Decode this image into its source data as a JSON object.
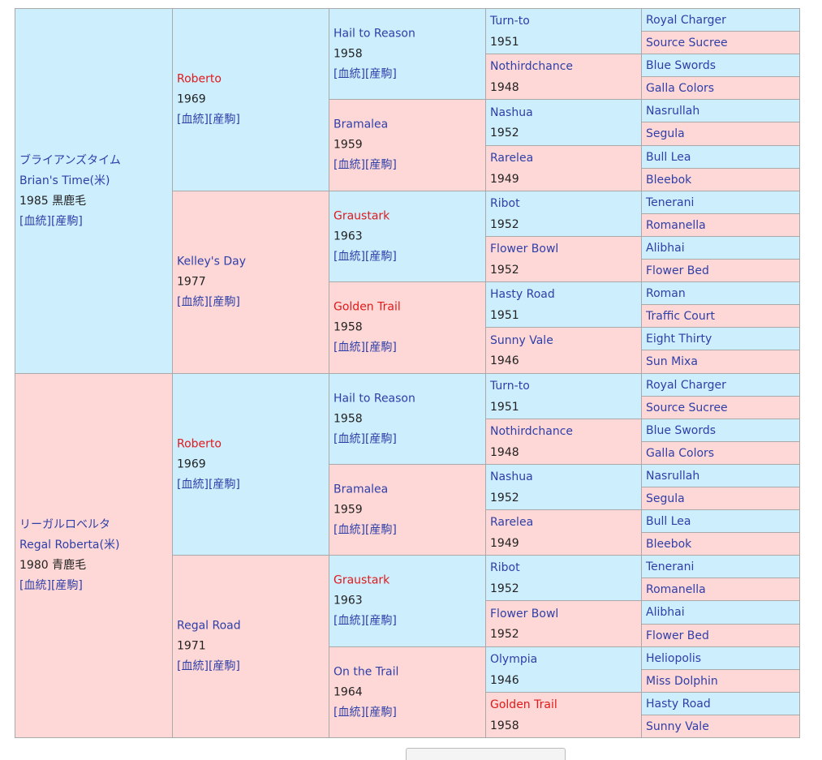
{
  "link_labels": [
    "[血統]",
    "[産駒]"
  ],
  "gen1": [
    {
      "name_ja": "ブライアンズタイム",
      "name_en": "Brian's Time(米)",
      "year": "1985",
      "color": "黒鹿毛",
      "sex": "male"
    },
    {
      "name_ja": "リーガルロベルタ",
      "name_en": "Regal Roberta(米)",
      "year": "1980",
      "color": "青鹿毛",
      "sex": "female"
    }
  ],
  "gen2": [
    {
      "name": "Roberto",
      "year": "1969",
      "red": true,
      "sex": "male"
    },
    {
      "name": "Kelley's Day",
      "year": "1977",
      "red": false,
      "sex": "female"
    },
    {
      "name": "Roberto",
      "year": "1969",
      "red": true,
      "sex": "male"
    },
    {
      "name": "Regal Road",
      "year": "1971",
      "red": false,
      "sex": "female"
    }
  ],
  "gen3": [
    {
      "name": "Hail to Reason",
      "year": "1958",
      "red": false,
      "sex": "male"
    },
    {
      "name": "Bramalea",
      "year": "1959",
      "red": false,
      "sex": "female"
    },
    {
      "name": "Graustark",
      "year": "1963",
      "red": true,
      "sex": "male"
    },
    {
      "name": "Golden Trail",
      "year": "1958",
      "red": true,
      "sex": "female"
    },
    {
      "name": "Hail to Reason",
      "year": "1958",
      "red": false,
      "sex": "male"
    },
    {
      "name": "Bramalea",
      "year": "1959",
      "red": false,
      "sex": "female"
    },
    {
      "name": "Graustark",
      "year": "1963",
      "red": true,
      "sex": "male"
    },
    {
      "name": "On the Trail",
      "year": "1964",
      "red": false,
      "sex": "female"
    }
  ],
  "gen4": [
    {
      "name": "Turn-to",
      "year": "1951",
      "red": false,
      "sex": "male"
    },
    {
      "name": "Nothirdchance",
      "year": "1948",
      "red": false,
      "sex": "female"
    },
    {
      "name": "Nashua",
      "year": "1952",
      "red": false,
      "sex": "male"
    },
    {
      "name": "Rarelea",
      "year": "1949",
      "red": false,
      "sex": "female"
    },
    {
      "name": "Ribot",
      "year": "1952",
      "red": false,
      "sex": "male"
    },
    {
      "name": "Flower Bowl",
      "year": "1952",
      "red": false,
      "sex": "female"
    },
    {
      "name": "Hasty Road",
      "year": "1951",
      "red": false,
      "sex": "male"
    },
    {
      "name": "Sunny Vale",
      "year": "1946",
      "red": false,
      "sex": "female"
    },
    {
      "name": "Turn-to",
      "year": "1951",
      "red": false,
      "sex": "male"
    },
    {
      "name": "Nothirdchance",
      "year": "1948",
      "red": false,
      "sex": "female"
    },
    {
      "name": "Nashua",
      "year": "1952",
      "red": false,
      "sex": "male"
    },
    {
      "name": "Rarelea",
      "year": "1949",
      "red": false,
      "sex": "female"
    },
    {
      "name": "Ribot",
      "year": "1952",
      "red": false,
      "sex": "male"
    },
    {
      "name": "Flower Bowl",
      "year": "1952",
      "red": false,
      "sex": "female"
    },
    {
      "name": "Olympia",
      "year": "1946",
      "red": false,
      "sex": "male"
    },
    {
      "name": "Golden Trail",
      "year": "1958",
      "red": true,
      "sex": "female"
    }
  ],
  "gen5": [
    {
      "name": "Royal Charger",
      "sex": "male"
    },
    {
      "name": "Source Sucree",
      "sex": "female"
    },
    {
      "name": "Blue Swords",
      "sex": "male"
    },
    {
      "name": "Galla Colors",
      "sex": "female"
    },
    {
      "name": "Nasrullah",
      "sex": "male"
    },
    {
      "name": "Segula",
      "sex": "female"
    },
    {
      "name": "Bull Lea",
      "sex": "male"
    },
    {
      "name": "Bleebok",
      "sex": "female"
    },
    {
      "name": "Tenerani",
      "sex": "male"
    },
    {
      "name": "Romanella",
      "sex": "female"
    },
    {
      "name": "Alibhai",
      "sex": "male"
    },
    {
      "name": "Flower Bed",
      "sex": "female"
    },
    {
      "name": "Roman",
      "sex": "male"
    },
    {
      "name": "Traffic Court",
      "sex": "female"
    },
    {
      "name": "Eight Thirty",
      "sex": "male"
    },
    {
      "name": "Sun Mixa",
      "sex": "female"
    },
    {
      "name": "Royal Charger",
      "sex": "male"
    },
    {
      "name": "Source Sucree",
      "sex": "female"
    },
    {
      "name": "Blue Swords",
      "sex": "male"
    },
    {
      "name": "Galla Colors",
      "sex": "female"
    },
    {
      "name": "Nasrullah",
      "sex": "male"
    },
    {
      "name": "Segula",
      "sex": "female"
    },
    {
      "name": "Bull Lea",
      "sex": "male"
    },
    {
      "name": "Bleebok",
      "sex": "female"
    },
    {
      "name": "Tenerani",
      "sex": "male"
    },
    {
      "name": "Romanella",
      "sex": "female"
    },
    {
      "name": "Alibhai",
      "sex": "male"
    },
    {
      "name": "Flower Bed",
      "sex": "female"
    },
    {
      "name": "Heliopolis",
      "sex": "male"
    },
    {
      "name": "Miss Dolphin",
      "sex": "female"
    },
    {
      "name": "Hasty Road",
      "sex": "male"
    },
    {
      "name": "Sunny Vale",
      "sex": "female"
    }
  ]
}
